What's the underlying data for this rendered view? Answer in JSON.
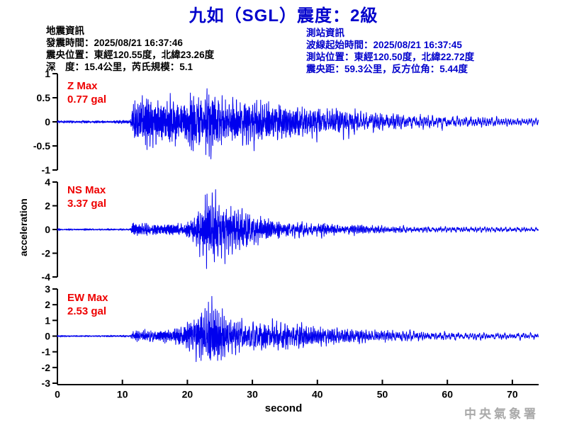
{
  "header": {
    "title": "九如（SGL）震度：2級"
  },
  "earthquake_info": {
    "heading": "地震資訊",
    "lines": [
      "發震時間：2025/08/21 16:37:46",
      "震央位置：東經120.55度，北緯23.26度",
      "深　度：15.4公里，芮氏規模：5.1"
    ]
  },
  "station_info": {
    "heading": "測站資訊",
    "lines": [
      "波線起始時間：2025/08/21 16:37:45",
      "測站位置：東經120.50度，北緯22.72度",
      "震央距：59.3公里，反方位角：5.44度"
    ]
  },
  "footer": {
    "xlabel": "second",
    "agency": "中央氣象署"
  },
  "colors": {
    "title_blue": "#0000CC",
    "info_blue": "#0000CC",
    "text_black": "#000000",
    "max_red": "#EE0000",
    "waveform_blue": "#0000EE",
    "axis_black": "#000000",
    "agency_gray": "#A9A9A9"
  },
  "chart_data": {
    "type": "line",
    "title": "九如（SGL）震度：2級",
    "xlabel": "second",
    "ylabel": "acceleration",
    "x_range": [
      0,
      74
    ],
    "x_ticks": [
      0,
      10,
      20,
      30,
      40,
      50,
      60,
      70
    ],
    "grid": false,
    "legend": "none",
    "p_wave_onset_s": 11.5,
    "s_wave_onset_s": 21,
    "panels": [
      {
        "name": "Z",
        "label": "Z Max",
        "max_label": "0.77 gal",
        "max_gal": 0.77,
        "y_range": [
          -1,
          1
        ],
        "y_ticks": [
          1,
          0.5,
          0,
          -0.5,
          -1
        ],
        "envelope_t_gal": [
          [
            0,
            0.03
          ],
          [
            11.2,
            0.03
          ],
          [
            11.6,
            0.5
          ],
          [
            13,
            0.55
          ],
          [
            16,
            0.45
          ],
          [
            19,
            0.5
          ],
          [
            21,
            0.55
          ],
          [
            22.5,
            0.68
          ],
          [
            23.5,
            0.78
          ],
          [
            24.5,
            0.55
          ],
          [
            27,
            0.5
          ],
          [
            30,
            0.45
          ],
          [
            33,
            0.4
          ],
          [
            36,
            0.34
          ],
          [
            40,
            0.3
          ],
          [
            44,
            0.25
          ],
          [
            48,
            0.2
          ],
          [
            52,
            0.16
          ],
          [
            56,
            0.13
          ],
          [
            60,
            0.12
          ],
          [
            65,
            0.1
          ],
          [
            70,
            0.08
          ],
          [
            74,
            0.07
          ]
        ]
      },
      {
        "name": "NS",
        "label": "NS Max",
        "max_label": "3.37 gal",
        "max_gal": 3.37,
        "y_range": [
          -4,
          4
        ],
        "y_ticks": [
          4,
          2,
          0,
          -2,
          -4
        ],
        "envelope_t_gal": [
          [
            0,
            0.08
          ],
          [
            11.2,
            0.08
          ],
          [
            11.6,
            0.55
          ],
          [
            13,
            0.5
          ],
          [
            15,
            0.42
          ],
          [
            17,
            0.4
          ],
          [
            19,
            0.5
          ],
          [
            20.5,
            0.8
          ],
          [
            21.5,
            1.7
          ],
          [
            22.5,
            3.37
          ],
          [
            23.5,
            3.2
          ],
          [
            24.5,
            2.6
          ],
          [
            26,
            2.0
          ],
          [
            27.5,
            1.6
          ],
          [
            29,
            1.3
          ],
          [
            31,
            1.05
          ],
          [
            33,
            0.9
          ],
          [
            35,
            0.78
          ],
          [
            38,
            0.65
          ],
          [
            41,
            0.55
          ],
          [
            44,
            0.48
          ],
          [
            47,
            0.42
          ],
          [
            50,
            0.36
          ],
          [
            54,
            0.3
          ],
          [
            58,
            0.27
          ],
          [
            62,
            0.24
          ],
          [
            66,
            0.22
          ],
          [
            70,
            0.2
          ],
          [
            74,
            0.17
          ]
        ]
      },
      {
        "name": "EW",
        "label": "EW Max",
        "max_label": "2.53 gal",
        "max_gal": 2.53,
        "y_range": [
          -3,
          3
        ],
        "y_ticks": [
          3,
          2,
          1,
          0,
          -1,
          -2,
          -3
        ],
        "envelope_t_gal": [
          [
            0,
            0.07
          ],
          [
            11.2,
            0.07
          ],
          [
            11.6,
            0.5
          ],
          [
            13,
            0.45
          ],
          [
            15,
            0.5
          ],
          [
            17,
            0.58
          ],
          [
            19,
            0.7
          ],
          [
            20.5,
            1.3
          ],
          [
            22,
            2.3
          ],
          [
            23.5,
            2.53
          ],
          [
            25,
            2.35
          ],
          [
            26.5,
            1.9
          ],
          [
            28,
            1.55
          ],
          [
            30,
            1.3
          ],
          [
            32,
            1.12
          ],
          [
            34,
            1.0
          ],
          [
            36,
            0.9
          ],
          [
            39,
            0.78
          ],
          [
            42,
            0.65
          ],
          [
            45,
            0.56
          ],
          [
            48,
            0.5
          ],
          [
            51,
            0.44
          ],
          [
            54,
            0.4
          ],
          [
            58,
            0.35
          ],
          [
            62,
            0.3
          ],
          [
            66,
            0.27
          ],
          [
            70,
            0.25
          ],
          [
            74,
            0.22
          ]
        ]
      }
    ]
  }
}
